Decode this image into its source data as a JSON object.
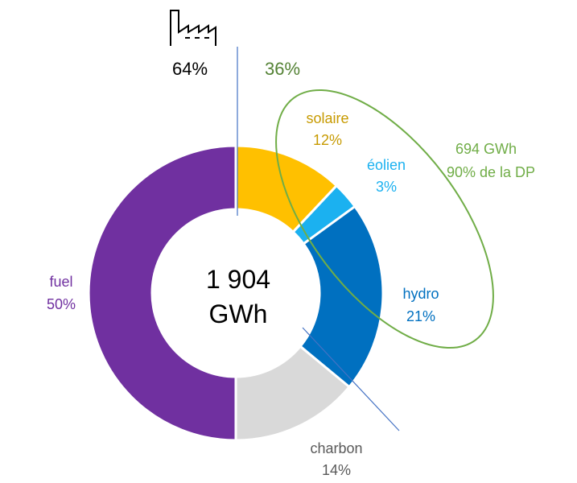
{
  "chart_data": {
    "type": "pie",
    "center_label": [
      "1 904",
      "GWh"
    ],
    "fossil_share": "64%",
    "renewable_share": "36%",
    "renewable_total": [
      "694 GWh",
      "90% de la DP"
    ],
    "slices": [
      {
        "label": "solaire",
        "value": 12,
        "value_label": "12%",
        "color": "#FFC000",
        "text_color": "#C79A00"
      },
      {
        "label": "éolien",
        "value": 3,
        "value_label": "3%",
        "color": "#1BB1F0",
        "text_color": "#1BB1F0"
      },
      {
        "label": "hydro",
        "value": 21,
        "value_label": "21%",
        "color": "#0070C0",
        "text_color": "#0070C0"
      },
      {
        "label": "charbon",
        "value": 14,
        "value_label": "14%",
        "color": "#D9D9D9",
        "text_color": "#595959"
      },
      {
        "label": "fuel",
        "value": 50,
        "value_label": "50%",
        "color": "#7030A0",
        "text_color": "#7030A0"
      }
    ],
    "colors": {
      "renewable": "#70AD47",
      "fossil": "#000000",
      "divider": "#4472C4"
    },
    "icons": {
      "fossil": "factory-icon"
    }
  }
}
